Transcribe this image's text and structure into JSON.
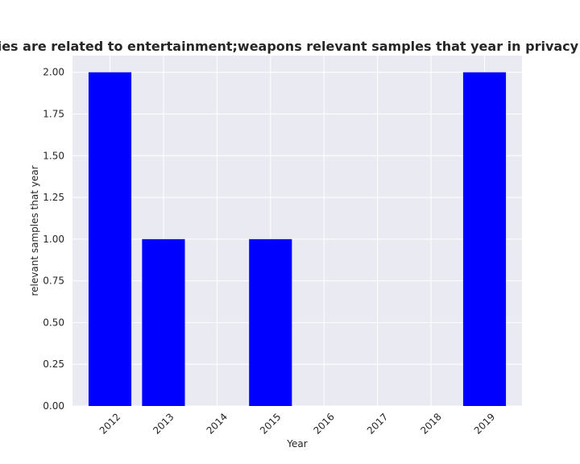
{
  "chart_data": {
    "type": "bar",
    "title": "categories are related to entertainment;weapons relevant samples that year in privacy policies",
    "xlabel": "Year",
    "ylabel": "relevant samples that year",
    "categories": [
      "2012",
      "2013",
      "2014",
      "2015",
      "2016",
      "2017",
      "2018",
      "2019"
    ],
    "values": [
      2,
      1,
      0,
      1,
      0,
      0,
      0,
      2
    ],
    "ylim": [
      0,
      2.1
    ],
    "yticks": [
      "0.00",
      "0.25",
      "0.50",
      "0.75",
      "1.00",
      "1.25",
      "1.50",
      "1.75",
      "2.00"
    ],
    "grid": true,
    "legend": "none",
    "colors": {
      "bar": "#0000ff",
      "plot_background": "#eaeaf2",
      "grid": "#ffffff",
      "text": "#262626"
    }
  }
}
